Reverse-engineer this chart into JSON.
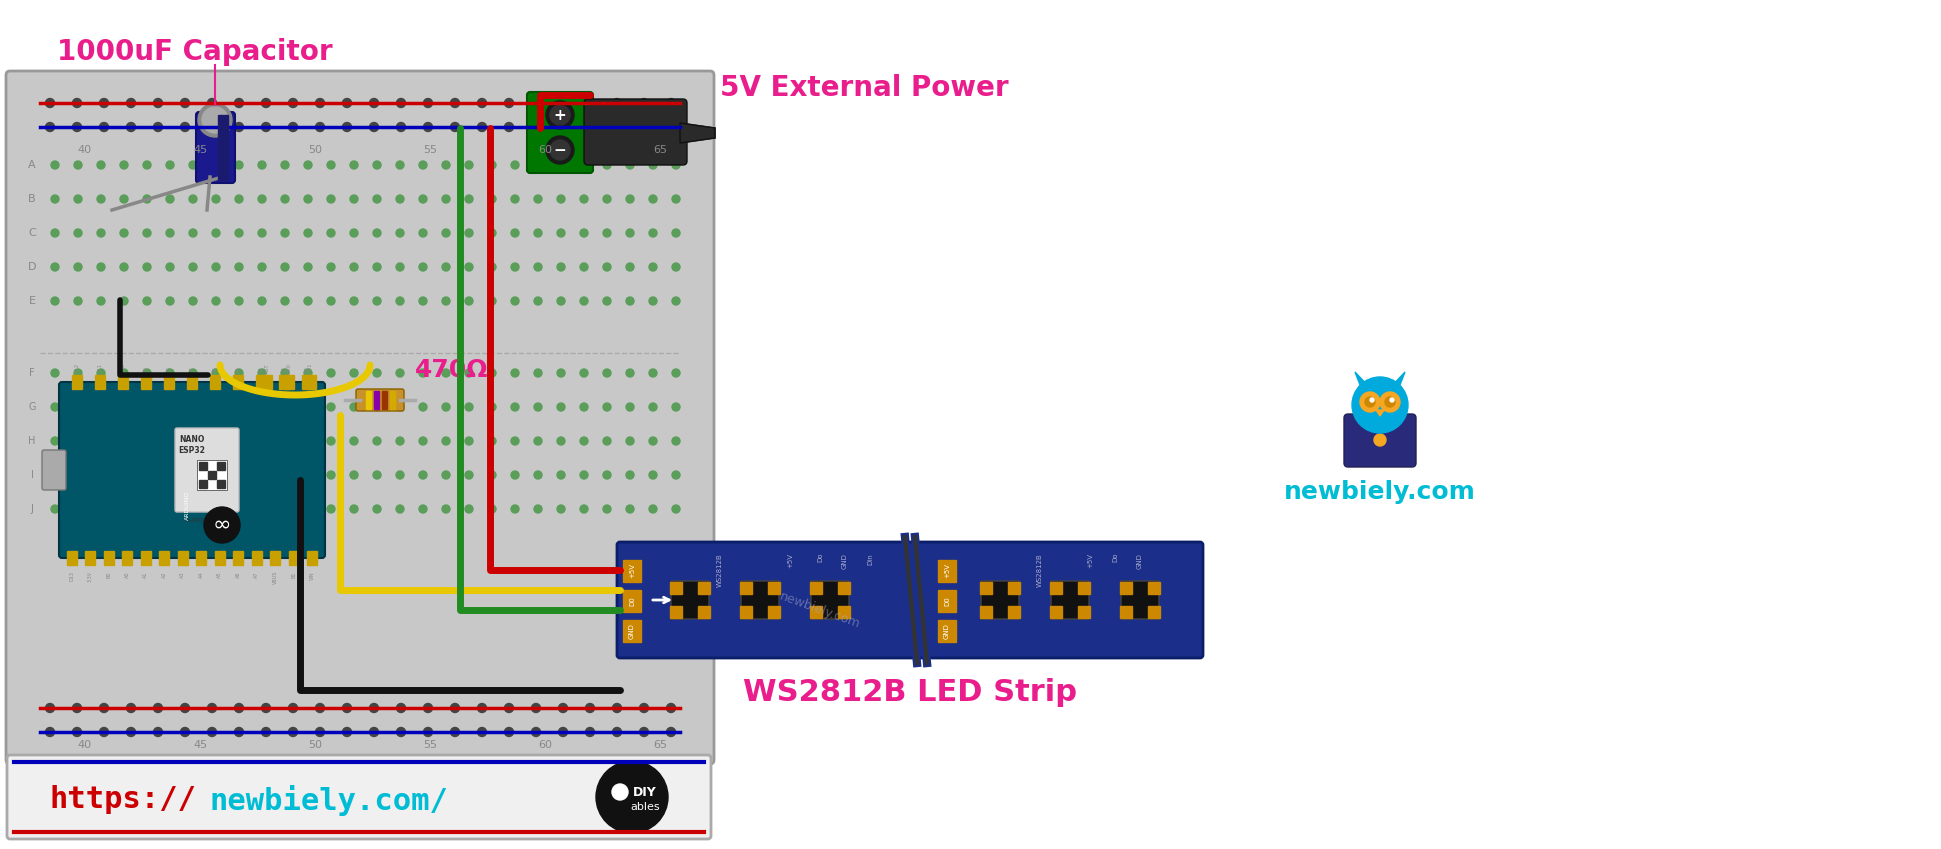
{
  "bg_color": "#ffffff",
  "capacitor_label": "1000uF Capacitor",
  "capacitor_label_color": "#e91e8c",
  "power_label": "5V External Power",
  "power_label_color": "#e91e8c",
  "led_strip_label": "WS2812B LED Strip",
  "led_strip_label_color": "#e91e8c",
  "resistor_label": "470Ω",
  "resistor_label_color": "#e91e8c",
  "newbiely_color": "#00bcd4",
  "wire_red": "#cc0000",
  "wire_black": "#111111",
  "wire_yellow": "#e8c800",
  "wire_green": "#228b22",
  "breadboard_bg": "#c8c8c8",
  "breadboard_edge": "#999999",
  "hole_green": "#5a9e5a",
  "hole_dark": "#444444",
  "rail_red": "#cc0000",
  "rail_blue": "#0000bb",
  "arduino_pcb": "#005566",
  "arduino_pcb_edge": "#003344",
  "led_strip_pcb": "#1a2e8a",
  "led_strip_pcb_edge": "#0a1e6a",
  "website_https_color": "#cc0000",
  "website_rest_color": "#00bcd4",
  "bottom_bar_bg": "#f0f0f0",
  "bottom_bar_edge": "#aaaaaa"
}
